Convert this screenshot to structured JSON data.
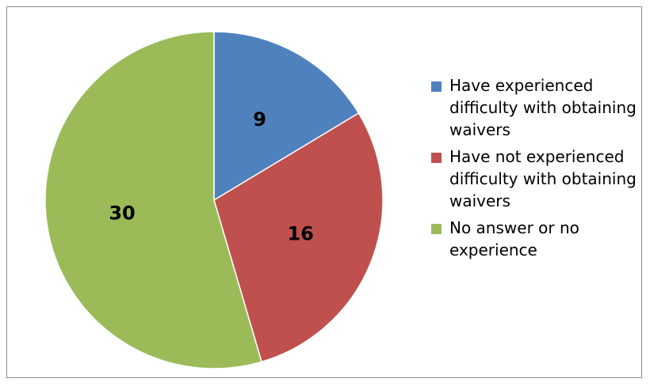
{
  "chart_data": {
    "type": "pie",
    "categories": [
      "Have experienced difficulty with obtaining waivers",
      "Have not experienced difficulty with obtaining waivers",
      "No answer or no experience"
    ],
    "values": [
      9,
      16,
      30
    ],
    "colors": [
      "#4f81bd",
      "#c0504d",
      "#9bbb59"
    ],
    "data_labels": [
      "9",
      "16",
      "30"
    ],
    "start_angle": "12 o'clock",
    "direction": "clockwise",
    "legend": {
      "placement": "right",
      "entries": [
        {
          "label": "Have experienced difficulty with obtaining waivers",
          "color": "#4f81bd"
        },
        {
          "label": "Have not experienced difficulty with obtaining waivers",
          "color": "#c0504d"
        },
        {
          "label": "No answer or no experience",
          "color": "#9bbb59"
        }
      ]
    }
  }
}
